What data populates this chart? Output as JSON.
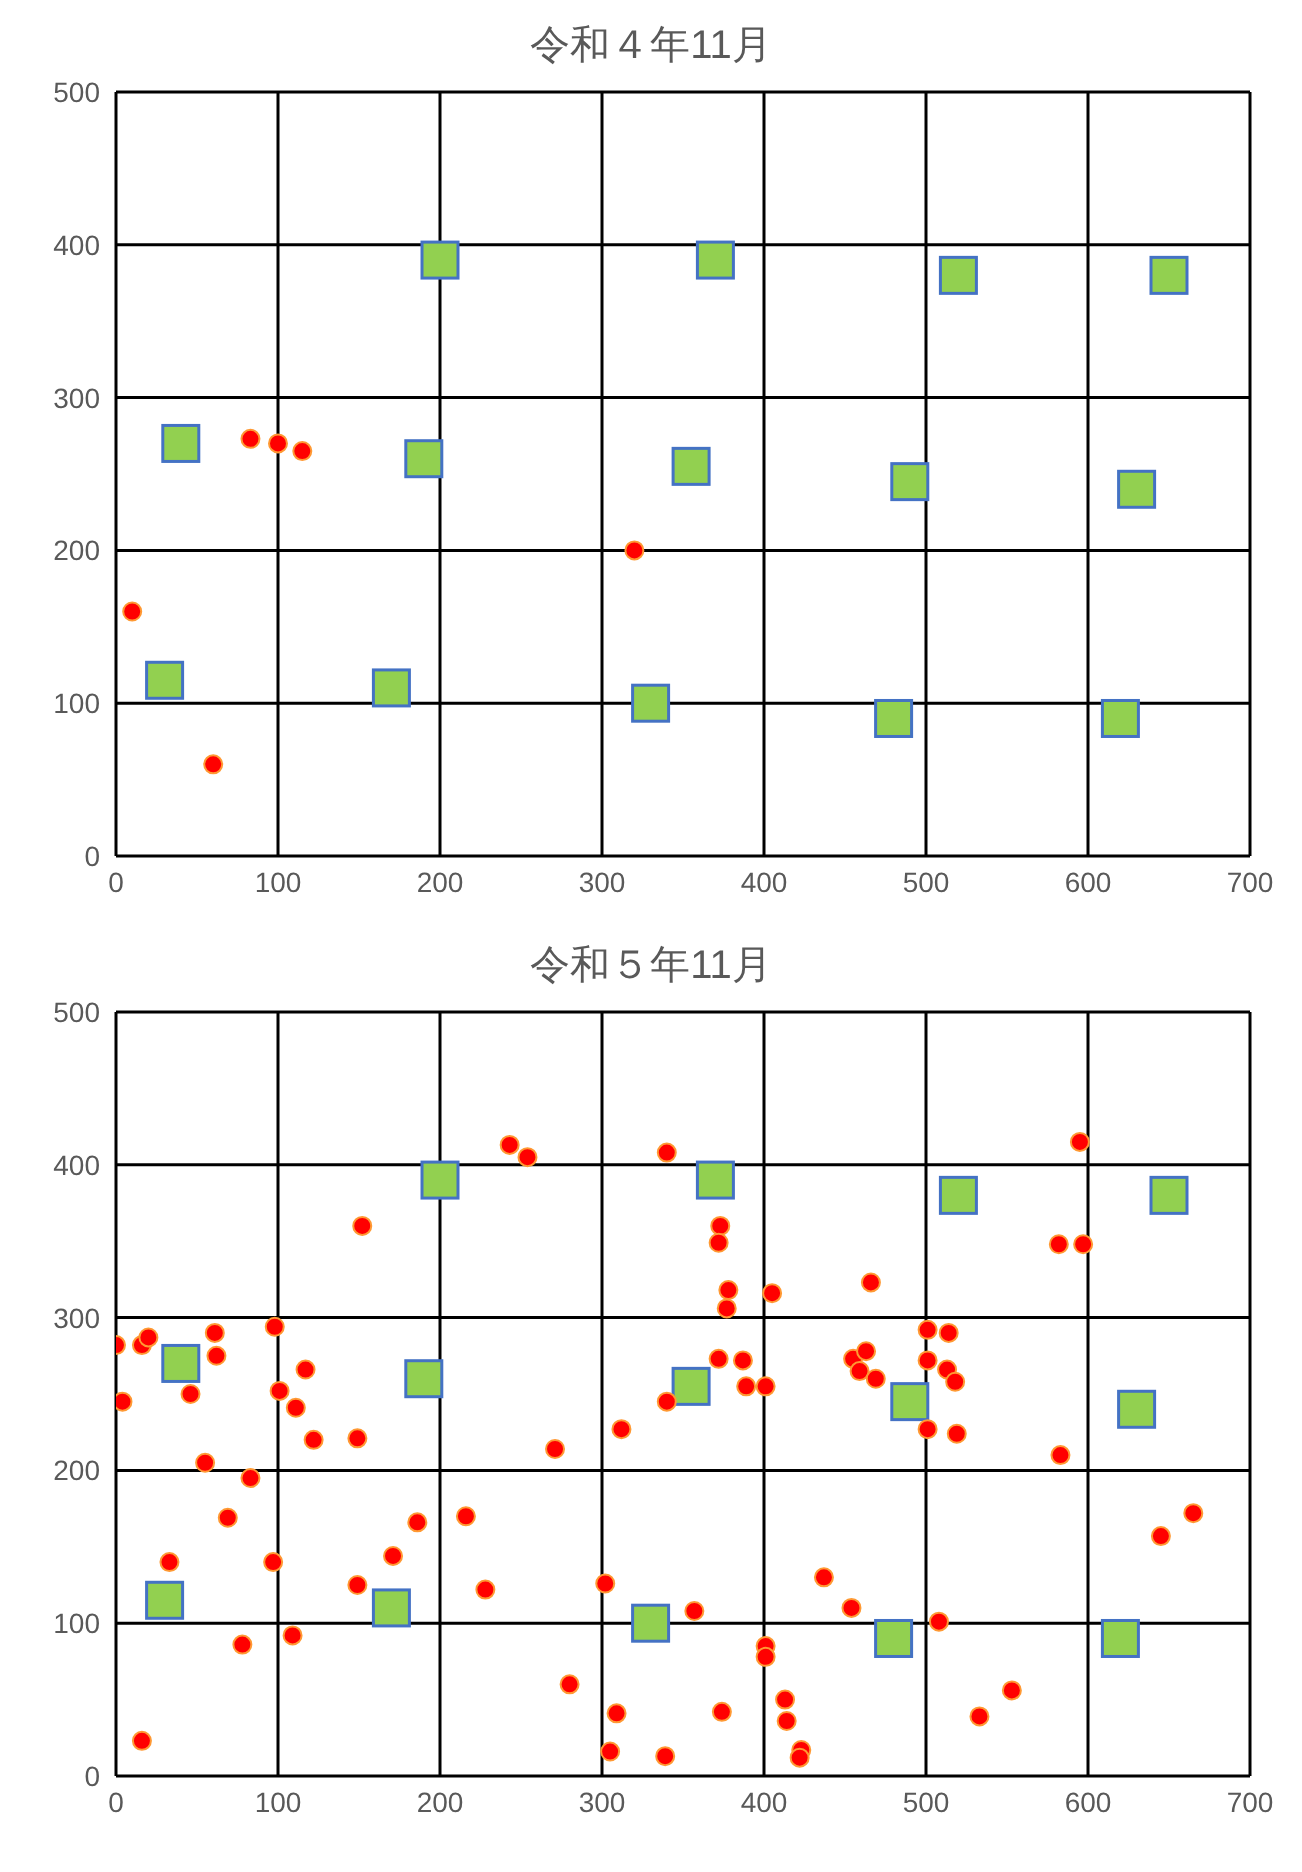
{
  "chart_data": [
    {
      "type": "scatter",
      "title": "令和４年11月",
      "xlim": [
        0,
        700
      ],
      "xticks": [
        0,
        100,
        200,
        300,
        400,
        500,
        600,
        700
      ],
      "ylim": [
        0,
        500
      ],
      "yticks": [
        0,
        100,
        200,
        300,
        400,
        500
      ],
      "grid": true,
      "series": [
        {
          "color": "#92d050",
          "marker": "square",
          "x": [
            30,
            40,
            170,
            190,
            200,
            330,
            355,
            370,
            480,
            490,
            520,
            620,
            630,
            650
          ],
          "values": [
            115,
            270,
            110,
            260,
            390,
            100,
            255,
            390,
            90,
            245,
            380,
            90,
            240,
            380
          ]
        },
        {
          "color": "#ff0000",
          "marker": "circle",
          "x": [
            10,
            60,
            83,
            100,
            115,
            320
          ],
          "values": [
            160,
            60,
            273,
            270,
            265,
            200
          ]
        }
      ]
    },
    {
      "type": "scatter",
      "title": "令和５年11月",
      "xlim": [
        0,
        700
      ],
      "xticks": [
        0,
        100,
        200,
        300,
        400,
        500,
        600,
        700
      ],
      "ylim": [
        0,
        500
      ],
      "yticks": [
        0,
        100,
        200,
        300,
        400,
        500
      ],
      "grid": true,
      "series": [
        {
          "color": "#92d050",
          "marker": "square",
          "x": [
            30,
            40,
            170,
            190,
            200,
            330,
            355,
            370,
            480,
            490,
            520,
            620,
            630,
            650
          ],
          "values": [
            115,
            270,
            110,
            260,
            390,
            100,
            255,
            390,
            90,
            245,
            380,
            90,
            240,
            380
          ]
        },
        {
          "color": "#ff0000",
          "marker": "circle",
          "x": [
            0,
            4,
            16,
            20,
            46,
            33,
            16,
            61,
            62,
            55,
            83,
            69,
            78,
            97,
            98,
            101,
            111,
            117,
            122,
            109,
            149,
            152,
            149,
            171,
            186,
            216,
            228,
            243,
            254,
            271,
            280,
            302,
            305,
            309,
            312,
            340,
            340,
            339,
            373,
            372,
            378,
            377,
            405,
            372,
            387,
            389,
            401,
            466,
            455,
            463,
            459,
            469,
            501,
            514,
            501,
            513,
            518,
            501,
            519,
            583,
            595,
            582,
            597,
            645,
            665,
            357,
            437,
            454,
            508,
            401,
            401,
            413,
            414,
            423,
            422,
            374,
            553,
            533
          ],
          "values": [
            282,
            245,
            282,
            287,
            250,
            140,
            23,
            290,
            275,
            205,
            195,
            169,
            86,
            140,
            294,
            252,
            241,
            266,
            220,
            92,
            221,
            360,
            125,
            144,
            166,
            170,
            122,
            413,
            405,
            214,
            60,
            126,
            16,
            41,
            227,
            408,
            245,
            13,
            360,
            349,
            318,
            306,
            316,
            273,
            272,
            255,
            255,
            323,
            273,
            278,
            265,
            260,
            292,
            290,
            272,
            266,
            258,
            227,
            224,
            210,
            415,
            348,
            348,
            157,
            172,
            108,
            130,
            110,
            101,
            85,
            78,
            50,
            36,
            17,
            12,
            42,
            56,
            39
          ]
        }
      ]
    }
  ]
}
